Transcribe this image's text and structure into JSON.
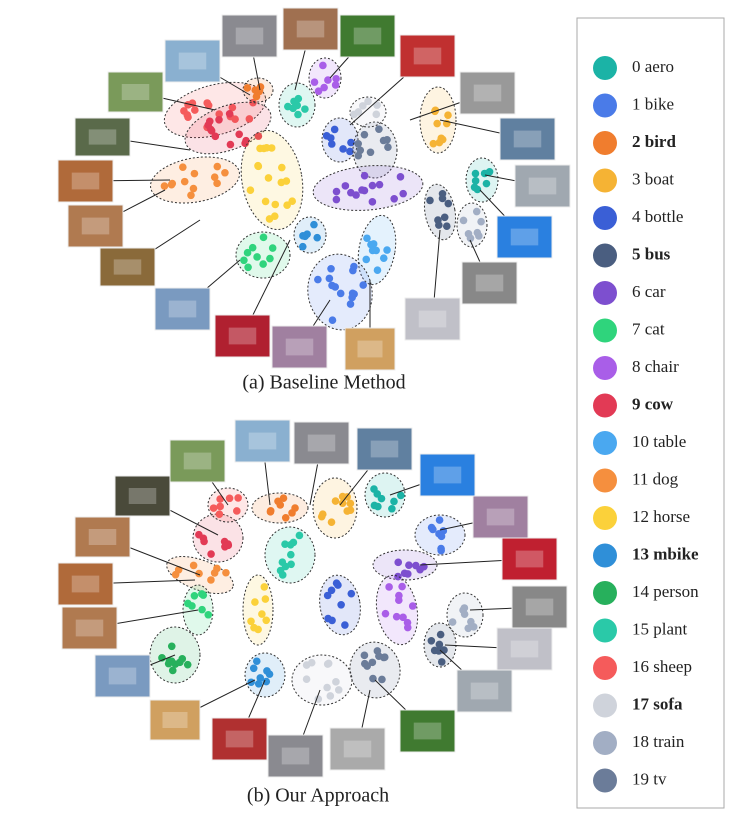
{
  "figure": {
    "captions": [
      "(a) Baseline Method",
      "(b) Our Approach"
    ],
    "legend": [
      {
        "label": "0 aero",
        "color": "#1bb3a6",
        "bold": false
      },
      {
        "label": "1 bike",
        "color": "#4a7be8",
        "bold": false
      },
      {
        "label": "2 bird",
        "color": "#f07d2e",
        "bold": true
      },
      {
        "label": "3 boat",
        "color": "#f5b334",
        "bold": false
      },
      {
        "label": "4 bottle",
        "color": "#3a5fd6",
        "bold": false
      },
      {
        "label": "5 bus",
        "color": "#4a5e80",
        "bold": true
      },
      {
        "label": "6 car",
        "color": "#7d4fcf",
        "bold": false
      },
      {
        "label": "7 cat",
        "color": "#2fd47c",
        "bold": false
      },
      {
        "label": "8 chair",
        "color": "#a95ee8",
        "bold": false
      },
      {
        "label": "9 cow",
        "color": "#e23a55",
        "bold": true
      },
      {
        "label": "10 table",
        "color": "#4aa8f0",
        "bold": false
      },
      {
        "label": "11 dog",
        "color": "#f58f3e",
        "bold": false
      },
      {
        "label": "12 horse",
        "color": "#fbd13a",
        "bold": false
      },
      {
        "label": "13 mbike",
        "color": "#2f8fd8",
        "bold": true
      },
      {
        "label": "14 person",
        "color": "#27b05c",
        "bold": false
      },
      {
        "label": "15 plant",
        "color": "#2ac9a8",
        "bold": false
      },
      {
        "label": "16 sheep",
        "color": "#f55b5b",
        "bold": false
      },
      {
        "label": "17 sofa",
        "color": "#cfd3db",
        "bold": true
      },
      {
        "label": "18 train",
        "color": "#a2aec4",
        "bold": false
      },
      {
        "label": "19 tv",
        "color": "#6b7c99",
        "bold": false
      }
    ]
  }
}
